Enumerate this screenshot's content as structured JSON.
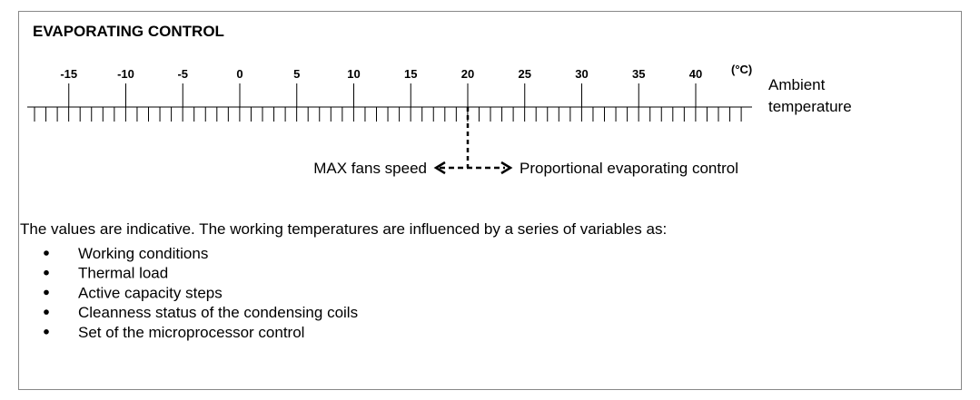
{
  "title": "EVAPORATING CONTROL",
  "scale": {
    "ticks": [
      -15,
      -10,
      -5,
      0,
      5,
      10,
      15,
      20,
      25,
      30,
      35,
      40
    ],
    "unit": "(°C)",
    "label": [
      "Ambient",
      "temperature"
    ]
  },
  "arrows": {
    "left": "MAX fans speed",
    "right": "Proportional evaporating control"
  },
  "note": {
    "text": "The values are indicative. The working temperatures are influenced by a series of variables as:",
    "items": [
      "Working conditions",
      "Thermal load",
      "Active capacity steps",
      "Cleanness status of the condensing coils",
      "Set of the microprocessor control"
    ]
  }
}
